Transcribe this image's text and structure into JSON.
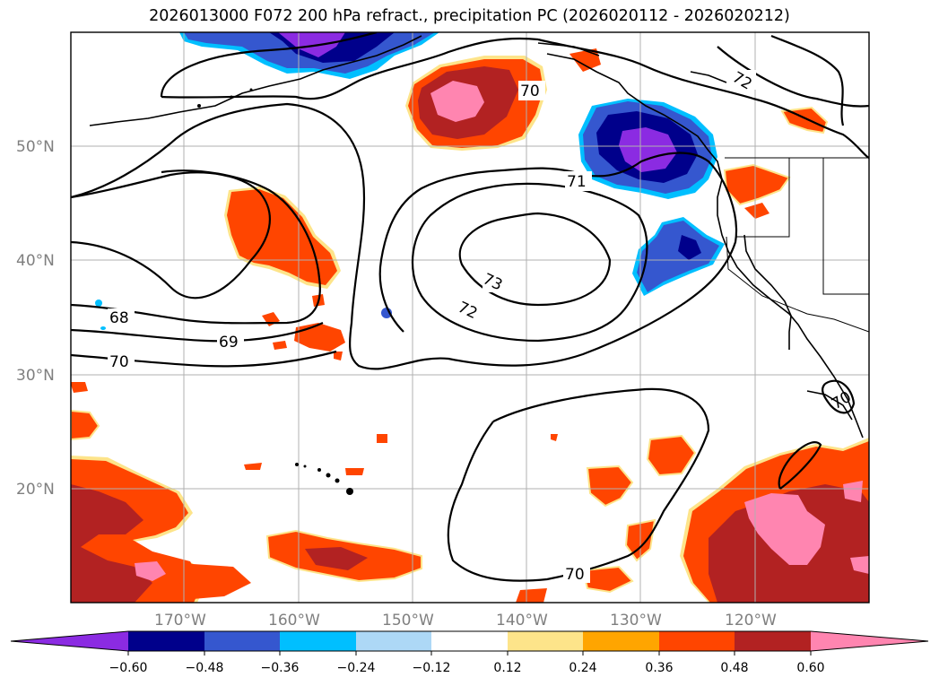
{
  "title": "2026013000 F072 200 hPa refract., precipitation PC (2026020112 - 2026020212)",
  "map": {
    "lat_labels": [
      "50°N",
      "40°N",
      "30°N",
      "20°N"
    ],
    "lon_labels": [
      "170°W",
      "160°W",
      "150°W",
      "140°W",
      "130°W",
      "120°W"
    ],
    "contour_labels": [
      "72",
      "70",
      "71",
      "73",
      "72",
      "68",
      "69",
      "70",
      "70",
      "70"
    ],
    "colors": {
      "neg_060": "#8b2be2",
      "neg_048": "#00008b",
      "neg_036": "#3557cf",
      "neg_024": "#00bfff",
      "neg_012": "#add8f6",
      "pos_012": "#fde48a",
      "pos_024": "#ffa500",
      "pos_036": "#ff4500",
      "pos_048": "#b22222",
      "pos_060": "#ff85b0"
    }
  },
  "colorbar": {
    "ticks": [
      "−0.60",
      "−0.48",
      "−0.36",
      "−0.24",
      "−0.12",
      "0.12",
      "0.24",
      "0.36",
      "0.48",
      "0.60"
    ],
    "bins": [
      "#8b2be2",
      "#00008b",
      "#3557cf",
      "#00bfff",
      "#add8f6",
      "#ffffff",
      "#fde48a",
      "#ffa500",
      "#ff4500",
      "#b22222",
      "#ff85b0"
    ]
  }
}
